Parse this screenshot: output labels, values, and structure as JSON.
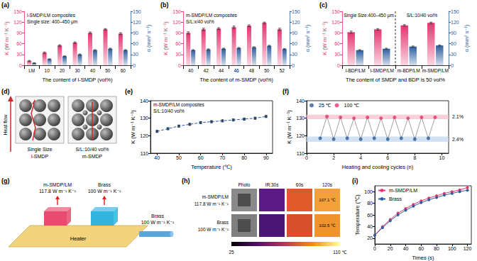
{
  "chart_data": [
    {
      "panel": "(a)",
      "type": "bar",
      "annotations": [
        "l-SMDP/LM composites",
        "Single size: 400–450 μm"
      ],
      "categories": [
        "LM",
        "10",
        "20",
        "30",
        "40",
        "50",
        "60"
      ],
      "x_label": "The content of l-SMDP (vol%)",
      "y_label": "K (W m⁻¹ K⁻¹)",
      "y2_label": "α (mm² s⁻¹)",
      "ylim": [
        0,
        150
      ],
      "yticks": [
        0,
        30,
        60,
        90,
        120,
        150
      ],
      "y2lim": [
        0,
        150
      ],
      "y2ticks": [
        0,
        30,
        60,
        90,
        120,
        150
      ],
      "series": [
        {
          "name": "K",
          "color": "#e5356f",
          "values": [
            12,
            35,
            55,
            63,
            90,
            100,
            88
          ],
          "errors": [
            1.5,
            2,
            2,
            2,
            2.5,
            2,
            2.5
          ]
        },
        {
          "name": "α",
          "color": "#2d5d9f",
          "axis": "y2",
          "values": [
            6,
            17,
            25,
            30,
            42,
            46,
            42
          ],
          "errors": [
            1,
            1,
            1,
            1.5,
            1.5,
            1.5,
            1.5
          ]
        }
      ]
    },
    {
      "panel": "(b)",
      "type": "bar",
      "annotations": [
        "m-SMDP/LM composites",
        "S/L:x/40 vol%"
      ],
      "categories": [
        "40",
        "42",
        "44",
        "46",
        "48",
        "50",
        "52"
      ],
      "x_label": "The content of m-SMDP (vol%)",
      "y_label": "K (W m⁻¹ K⁻¹)",
      "y2_label": "α (mm² s⁻¹)",
      "ylim": [
        0,
        150
      ],
      "yticks": [
        0,
        30,
        60,
        90,
        120,
        150
      ],
      "y2lim": [
        0,
        150
      ],
      "y2ticks": [
        0,
        30,
        60,
        90,
        120,
        150
      ],
      "series": [
        {
          "name": "K",
          "color": "#e5356f",
          "values": [
            90,
            100,
            102,
            106,
            110,
            118,
            100
          ],
          "errors": [
            3,
            3,
            2.5,
            3,
            2.5,
            2,
            3
          ]
        },
        {
          "name": "α",
          "color": "#2d5d9f",
          "axis": "y2",
          "values": [
            42,
            44,
            46,
            48,
            50,
            54,
            45
          ],
          "errors": [
            1.5,
            1.5,
            1.5,
            1.5,
            1.5,
            1.5,
            1.5
          ]
        }
      ]
    },
    {
      "panel": "(c)",
      "type": "bar",
      "annotations": [
        "Single Size:400–450 μm",
        "S/L:10/40 vol%"
      ],
      "categories": [
        "l-BDP/LM",
        "l-SMDP/LM",
        "m-BDP/LM",
        "m-SMDP/LM"
      ],
      "x_label": "The content of SMDP and BDP is 50 vol%",
      "y_label": "K (W m⁻¹ K⁻¹)",
      "y2_label": "α (mm² s⁻¹)",
      "ylim": [
        0,
        150
      ],
      "yticks": [
        0,
        30,
        60,
        90,
        120,
        150
      ],
      "y2lim": [
        0,
        150
      ],
      "y2ticks": [
        0,
        30,
        60,
        90,
        120,
        150
      ],
      "series": [
        {
          "name": "K",
          "color": "#e5356f",
          "values": [
            92,
            100,
            111,
            118
          ],
          "errors": [
            3,
            2,
            2,
            2
          ]
        },
        {
          "name": "α",
          "color": "#2d5d9f",
          "axis": "y2",
          "values": [
            42,
            46,
            52,
            55
          ],
          "errors": [
            1.5,
            1.5,
            1.5,
            1.5
          ]
        }
      ]
    },
    {
      "panel": "(e)",
      "type": "line",
      "annotations": [
        "m-SMDP/LM composites",
        "S/L:10/40 vol%"
      ],
      "x": [
        40,
        45,
        50,
        55,
        60,
        65,
        70,
        75,
        80,
        85,
        90
      ],
      "x_label": "Temperature (℃)",
      "y_label": "K (W m⁻¹ K⁻¹)",
      "xlim": [
        37,
        93
      ],
      "xticks": [
        40,
        50,
        60,
        70,
        80,
        90
      ],
      "ylim": [
        110,
        140
      ],
      "yticks": [
        110,
        120,
        130,
        140
      ],
      "series": [
        {
          "name": "K",
          "color": "#2d5d9f",
          "marker": "circle",
          "line_style": "dashed",
          "values": [
            122.5,
            124,
            125.5,
            126.5,
            127.5,
            128,
            128.5,
            129,
            129.5,
            130,
            131
          ],
          "errors": [
            0.6,
            0.6,
            0.6,
            0.6,
            0.6,
            0.6,
            0.6,
            0.6,
            0.6,
            0.6,
            0.6
          ]
        }
      ]
    },
    {
      "panel": "(f)",
      "type": "line",
      "legend": "top-left",
      "x_label": "Heating and cooling cycles (n)",
      "y_label": "K (W m⁻¹ K⁻¹)",
      "xlim": [
        0,
        10.5
      ],
      "xticks": [
        0,
        2,
        4,
        6,
        8,
        10
      ],
      "ylim": [
        110,
        140
      ],
      "yticks": [
        110,
        120,
        130,
        140
      ],
      "bands": [
        {
          "range": [
            129.5,
            132
          ],
          "color": "#f6bccb",
          "label": "2.1%"
        },
        {
          "range": [
            116.5,
            119.5
          ],
          "color": "#bcd6ef",
          "label": "2.4%"
        }
      ],
      "series": [
        {
          "name": "25 ℃",
          "type": "scatter",
          "color": "#2d5d9f",
          "marker": "circle",
          "x": [
            1,
            2,
            3,
            4,
            5,
            6,
            7,
            8,
            9
          ],
          "values": [
            118.5,
            118,
            118.5,
            118,
            118.5,
            118,
            118.5,
            118,
            118.5
          ]
        },
        {
          "name": "100 ℃",
          "type": "scatter",
          "color": "#e5356f",
          "marker": "circle",
          "x": [
            1.5,
            2.5,
            3.5,
            4.5,
            5.5,
            6.5,
            7.5,
            8.5,
            9.5
          ],
          "values": [
            131,
            130.5,
            130,
            130.5,
            130,
            130.5,
            130,
            130.5,
            130.5
          ]
        }
      ]
    },
    {
      "panel": "(i)",
      "type": "line",
      "legend": "top-left",
      "x": [
        0,
        10,
        20,
        30,
        40,
        50,
        60,
        70,
        80,
        90,
        100,
        110,
        120
      ],
      "x_label": "Times (s)",
      "y_label": "Temperature (℃)",
      "xlim": [
        0,
        125
      ],
      "xticks": [
        0,
        20,
        40,
        60,
        80,
        100,
        120
      ],
      "ylim": [
        10,
        110
      ],
      "yticks": [
        20,
        40,
        60,
        80,
        100
      ],
      "series": [
        {
          "name": "m-SMDP/LM",
          "color": "#e5356f",
          "marker": "circle",
          "values": [
            25,
            40,
            52,
            63,
            71,
            78,
            84,
            89,
            93,
            97,
            100,
            103,
            107
          ]
        },
        {
          "name": "Brass",
          "color": "#2d5d9f",
          "marker": "circle",
          "values": [
            25,
            38,
            50,
            60,
            68,
            75,
            81,
            86,
            90,
            94,
            97,
            100,
            102.5
          ]
        }
      ]
    }
  ],
  "diagrams": {
    "d": {
      "panel": "(d)",
      "arrow_label": "Heat flow",
      "left": {
        "title": "Single Size",
        "subtitle": "l-SMDP"
      },
      "right": {
        "title": "S/L:10/40 vol%",
        "subtitle": "m-SMDP"
      }
    },
    "g": {
      "panel": "(g)",
      "blocks": [
        {
          "name": "m-SMDP/LM",
          "value_text": "117.8 W m⁻¹ K⁻¹",
          "color": "#ea4a6e"
        },
        {
          "name": "Brass",
          "value_text": "100 W m⁻¹ K⁻¹",
          "color": "#2fb5e0"
        }
      ],
      "heater": "Heater",
      "rod": {
        "name": "Brass",
        "value_text": "100 W m⁻¹ K⁻¹"
      }
    },
    "h": {
      "panel": "(h)",
      "rows": [
        {
          "name": "m-SMDP/LM",
          "value_text": "117.8 W m⁻¹ K⁻¹"
        },
        {
          "name": "Brass",
          "value_text": "100 W m⁻¹ K⁻¹"
        }
      ],
      "frames": [
        "Photo",
        "IR:30s",
        "60s",
        "120s"
      ],
      "final_temps": [
        "107.1 ℃",
        "102.5 ℃"
      ],
      "colorbar": {
        "range": [
          25,
          110
        ],
        "ticks": [
          25,
          {
            "value": 110,
            "label": "110 ℃"
          }
        ]
      }
    }
  }
}
